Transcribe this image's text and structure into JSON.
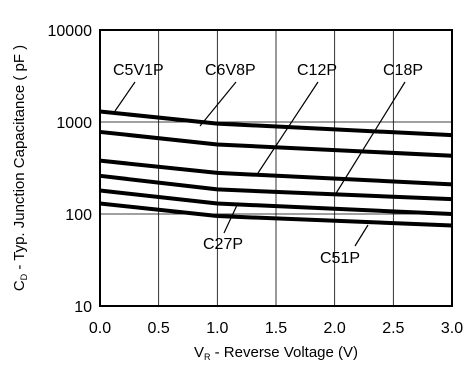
{
  "chart_data": {
    "type": "line",
    "title": "",
    "xlabel": {
      "main": "V",
      "sub": "R",
      "rest": " - Reverse  Voltage  (V)"
    },
    "ylabel": {
      "main": "C",
      "sub": "D",
      "rest": " - Typ. Junction Capacitance ( pF )"
    },
    "xlim": [
      0,
      3
    ],
    "ylim": [
      10,
      10000
    ],
    "yscale": "log",
    "grid": true,
    "x_ticks": [
      "0.0",
      "0.5",
      "1.0",
      "1.5",
      "2.0",
      "2.5",
      "3.0"
    ],
    "y_ticks": [
      "10",
      "100",
      "1000",
      "10000"
    ],
    "series": [
      {
        "name": "C5V1P",
        "x": [
          0,
          1,
          3
        ],
        "y": [
          1300,
          960,
          720
        ]
      },
      {
        "name": "C6V8P",
        "x": [
          0,
          1,
          3
        ],
        "y": [
          780,
          570,
          430
        ]
      },
      {
        "name": "C12P",
        "x": [
          0,
          1,
          3
        ],
        "y": [
          380,
          280,
          210
        ]
      },
      {
        "name": "C18P",
        "x": [
          0,
          1,
          3
        ],
        "y": [
          260,
          185,
          145
        ]
      },
      {
        "name": "C27P",
        "x": [
          0,
          1,
          3
        ],
        "y": [
          180,
          130,
          100
        ]
      },
      {
        "name": "C51P",
        "x": [
          0,
          1,
          3
        ],
        "y": [
          130,
          95,
          75
        ]
      }
    ],
    "annotations": [
      {
        "text": "C5V1P",
        "series": "C5V1P"
      },
      {
        "text": "C6V8P",
        "series": "C6V8P"
      },
      {
        "text": "C12P",
        "series": "C12P"
      },
      {
        "text": "C18P",
        "series": "C18P"
      },
      {
        "text": "C27P",
        "series": "C27P"
      },
      {
        "text": "C51P",
        "series": "C51P"
      }
    ]
  }
}
